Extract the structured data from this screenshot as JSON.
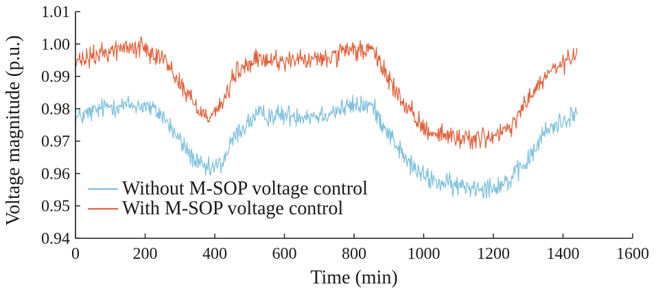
{
  "chart_data": {
    "type": "line",
    "xlabel": "Time (min)",
    "ylabel": "Voltage magnitude (p.u.)",
    "xlim": [
      0,
      1600
    ],
    "ylim": [
      0.94,
      1.01
    ],
    "xticks": [
      "0",
      "200",
      "400",
      "600",
      "800",
      "1000",
      "1200",
      "1400",
      "1600"
    ],
    "yticks": [
      "0.94",
      "0.95",
      "0.96",
      "0.97",
      "0.98",
      "0.99",
      "1.00",
      "1.01"
    ],
    "grid": false,
    "legend_position": "bottom-left",
    "series": [
      {
        "name": "Without M-SOP voltage control",
        "color": "#7ec0dc",
        "noise": 0.0016,
        "x": [
          0,
          50,
          100,
          150,
          200,
          250,
          300,
          350,
          380,
          420,
          460,
          520,
          600,
          700,
          800,
          850,
          880,
          950,
          1000,
          1050,
          1100,
          1150,
          1200,
          1250,
          1300,
          1350,
          1440
        ],
        "values": [
          0.977,
          0.979,
          0.981,
          0.981,
          0.981,
          0.978,
          0.97,
          0.963,
          0.961,
          0.963,
          0.972,
          0.978,
          0.978,
          0.978,
          0.981,
          0.981,
          0.976,
          0.964,
          0.959,
          0.957,
          0.956,
          0.956,
          0.956,
          0.958,
          0.964,
          0.973,
          0.979
        ]
      },
      {
        "name": "With M-SOP voltage control",
        "color": "#e2603b",
        "noise": 0.0016,
        "x": [
          0,
          50,
          100,
          150,
          200,
          250,
          300,
          350,
          380,
          420,
          460,
          520,
          600,
          700,
          800,
          850,
          880,
          950,
          1000,
          1050,
          1100,
          1150,
          1200,
          1250,
          1300,
          1350,
          1440
        ],
        "values": [
          0.994,
          0.996,
          0.998,
          0.999,
          0.999,
          0.996,
          0.988,
          0.98,
          0.978,
          0.981,
          0.991,
          0.995,
          0.995,
          0.995,
          0.998,
          0.998,
          0.993,
          0.98,
          0.974,
          0.972,
          0.971,
          0.971,
          0.971,
          0.974,
          0.983,
          0.99,
          0.997
        ]
      }
    ]
  }
}
